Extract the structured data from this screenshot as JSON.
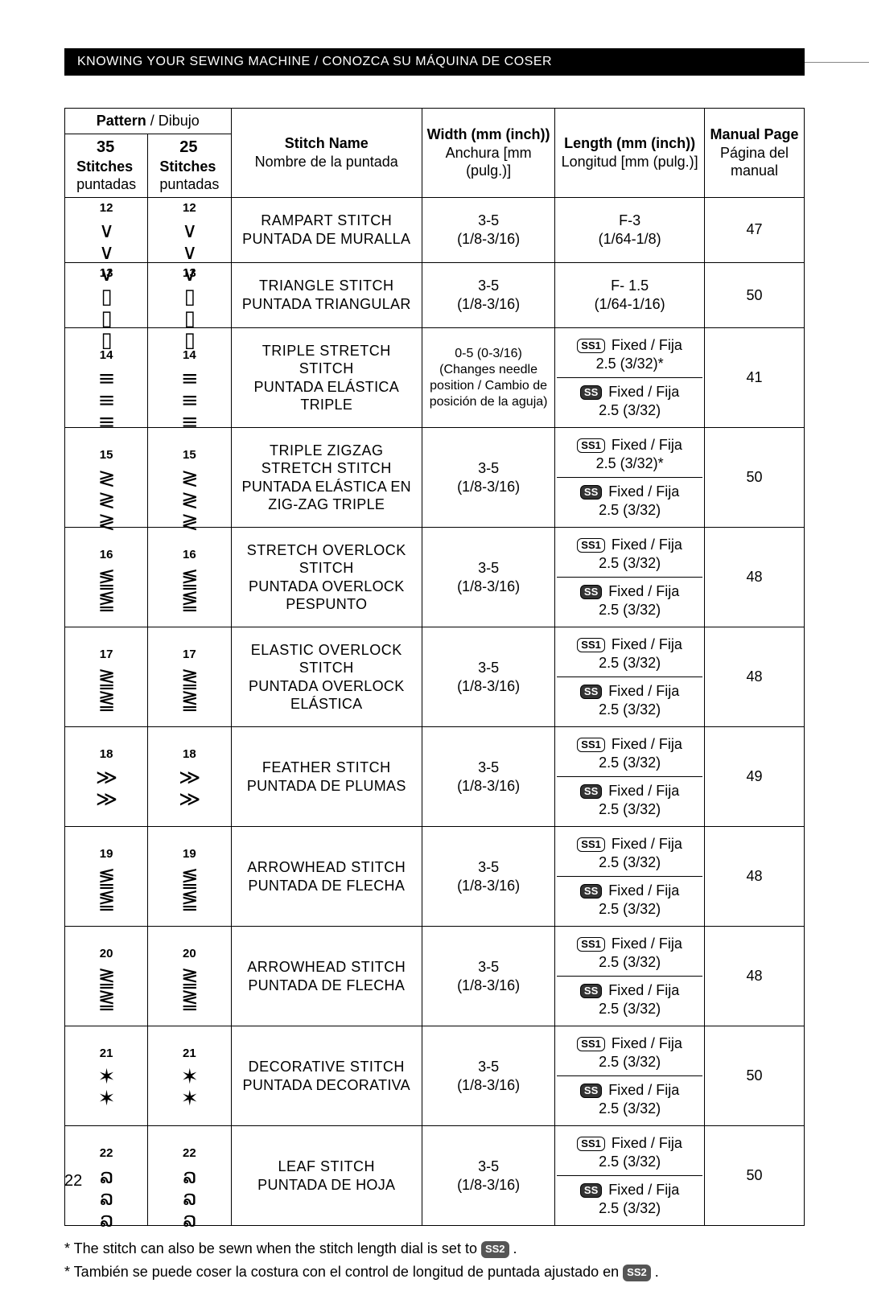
{
  "header": {
    "en": "KNOWING YOUR SEWING MACHINE",
    "es": "CONOZCA SU MÁQUINA DE COSER"
  },
  "columns": {
    "pattern_en": "Pattern",
    "pattern_es": "Dibujo",
    "sub35_num": "35",
    "sub35_en": "Stitches",
    "sub35_es": "puntadas",
    "sub25_num": "25",
    "sub25_en": "Stitches",
    "sub25_es": "puntadas",
    "name_en": "Stitch Name",
    "name_es": "Nombre de la puntada",
    "width_en": "Width (mm (inch))",
    "width_es": "Anchura [mm (pulg.)]",
    "length_en": "Length (mm (inch))",
    "length_es": "Longitud [mm (pulg.)]",
    "page_en": "Manual Page",
    "page_es": "Página del manual"
  },
  "badges": {
    "ss1": "SS1",
    "ss": "SS",
    "ss2": "SS2"
  },
  "fixed_en": "Fixed",
  "fixed_es": "Fija",
  "rows": [
    {
      "num": "12",
      "sym": "∨∨∨",
      "name_en": "RAMPART STITCH",
      "name_es": "PUNTADA DE MURALLA",
      "width": "3-5",
      "width_in": "(1/8-3/16)",
      "len_simple": "F-3",
      "len_simple2": "(1/64-1/8)",
      "page": "47"
    },
    {
      "num": "13",
      "sym": "▯▯▯",
      "name_en": "TRIANGLE STITCH",
      "name_es": "PUNTADA TRIANGULAR",
      "width": "3-5",
      "width_in": "(1/8-3/16)",
      "len_simple": "F- 1.5",
      "len_simple2": "(1/64-1/16)",
      "page": "50"
    },
    {
      "num": "14",
      "sym": "≡≡≡",
      "name_en": "TRIPLE STRETCH STITCH",
      "name_es": "PUNTADA ELÁSTICA TRIPLE",
      "width_multi": "0-5 (0-3/16)\n(Changes needle position / Cambio de posición de la aguja)",
      "len_split": true,
      "l1": "2.5 (3/32)*",
      "l2": "2.5 (3/32)",
      "page": "41"
    },
    {
      "num": "15",
      "sym": "≷≷≷",
      "name_en": "TRIPLE ZIGZAG STRETCH STITCH",
      "name_es": "PUNTADA ELÁSTICA EN ZIG-ZAG TRIPLE",
      "width": "3-5",
      "width_in": "(1/8-3/16)",
      "len_split": true,
      "l1": "2.5 (3/32)*",
      "l2": "2.5 (3/32)",
      "page": "50"
    },
    {
      "num": "16",
      "sym": "⪑⪑",
      "name_en": "STRETCH OVERLOCK STITCH",
      "name_es": "PUNTADA OVERLOCK PESPUNTO",
      "width": "3-5",
      "width_in": "(1/8-3/16)",
      "len_split": true,
      "l1": "2.5 (3/32)",
      "l2": "2.5 (3/32)",
      "page": "48"
    },
    {
      "num": "17",
      "sym": "⪒⪒",
      "name_en": "ELASTIC OVERLOCK STITCH",
      "name_es": "PUNTADA OVERLOCK ELÁSTICA",
      "width": "3-5",
      "width_in": "(1/8-3/16)",
      "len_split": true,
      "l1": "2.5 (3/32)",
      "l2": "2.5 (3/32)",
      "page": "48"
    },
    {
      "num": "18",
      "sym": "≫≫",
      "name_en": "FEATHER STITCH",
      "name_es": "PUNTADA DE PLUMAS",
      "width": "3-5",
      "width_in": "(1/8-3/16)",
      "len_split": true,
      "l1": "2.5 (3/32)",
      "l2": "2.5 (3/32)",
      "page": "49"
    },
    {
      "num": "19",
      "sym": "⪑⪑",
      "name_en": "ARROWHEAD STITCH",
      "name_es": "PUNTADA DE FLECHA",
      "width": "3-5",
      "width_in": "(1/8-3/16)",
      "len_split": true,
      "l1": "2.5 (3/32)",
      "l2": "2.5 (3/32)",
      "page": "48"
    },
    {
      "num": "20",
      "sym": "⪒⪒",
      "name_en": "ARROWHEAD STITCH",
      "name_es": "PUNTADA DE FLECHA",
      "width": "3-5",
      "width_in": "(1/8-3/16)",
      "len_split": true,
      "l1": "2.5 (3/32)",
      "l2": "2.5 (3/32)",
      "page": "48"
    },
    {
      "num": "21",
      "sym": "✶✶",
      "name_en": "DECORATIVE STITCH",
      "name_es": "PUNTADA DECORATIVA",
      "width": "3-5",
      "width_in": "(1/8-3/16)",
      "len_split": true,
      "l1": "2.5 (3/32)",
      "l2": "2.5 (3/32)",
      "page": "50"
    },
    {
      "num": "22",
      "sym": "ລລລ",
      "name_en": "LEAF STITCH",
      "name_es": "PUNTADA DE HOJA",
      "width": "3-5",
      "width_in": "(1/8-3/16)",
      "len_split": true,
      "l1": "2.5 (3/32)",
      "l2": "2.5 (3/32)",
      "page": "50"
    }
  ],
  "footnote_en": "* The stitch can also be sewn when the stitch length dial is set to ",
  "footnote_es": "* También se puede coser la costura con el control de longitud de puntada ajustado en ",
  "page_number": "22"
}
